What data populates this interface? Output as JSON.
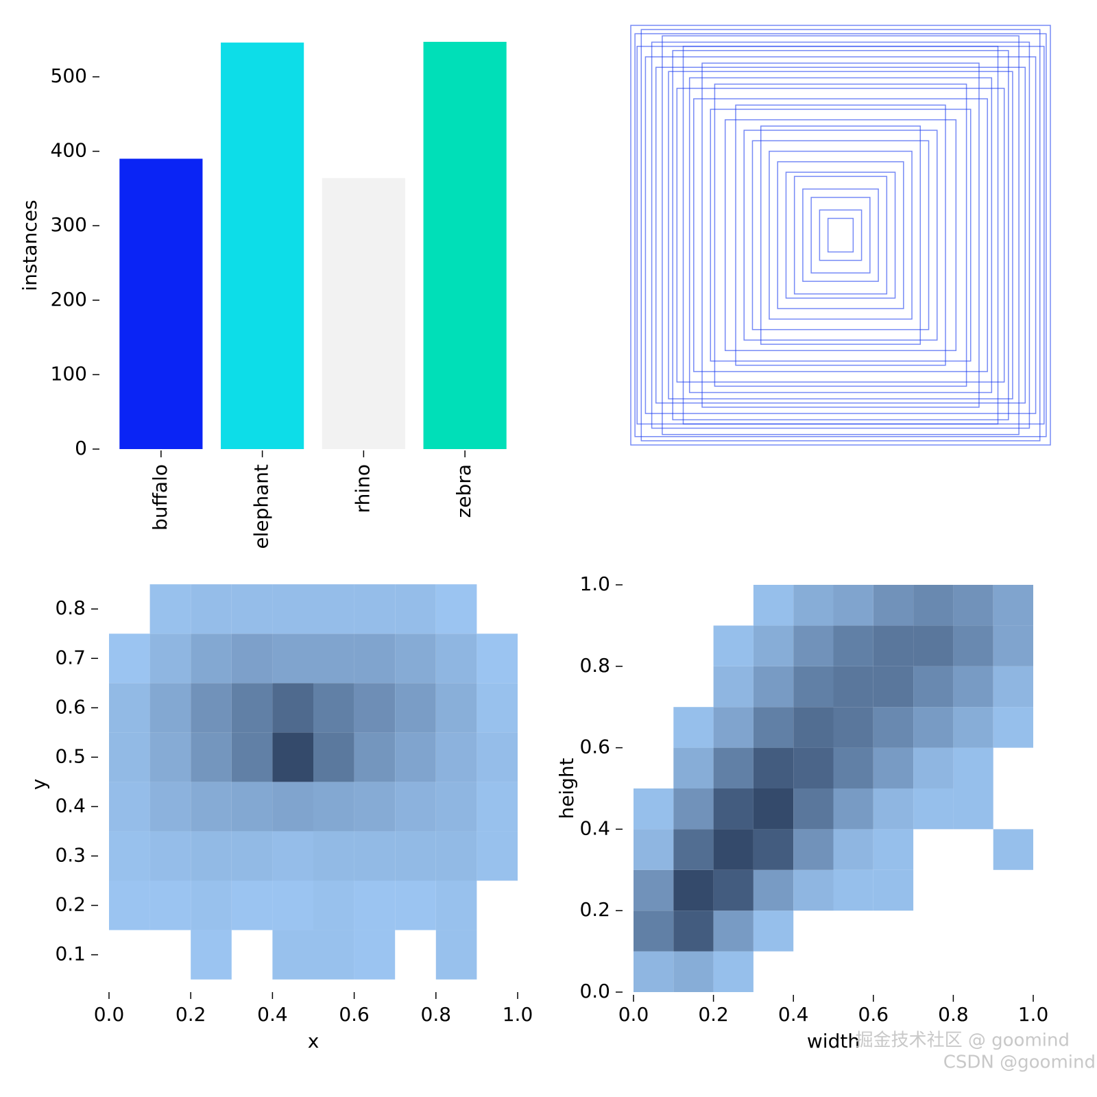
{
  "chart_data": [
    {
      "type": "bar",
      "ylabel": "instances",
      "categories": [
        "buffalo",
        "elephant",
        "rhino",
        "zebra"
      ],
      "values": [
        390,
        546,
        364,
        547
      ],
      "colors": [
        "#0a24f5",
        "#0ddde8",
        "#f2f2f2",
        "#00dfb8"
      ],
      "ylim": [
        0,
        547
      ],
      "yticks": [
        0,
        100,
        200,
        300,
        400,
        500
      ]
    },
    {
      "type": "boxes",
      "color": "#1a3cf0",
      "widths": [
        1.0,
        0.98,
        0.97,
        0.95,
        0.93,
        0.9,
        0.88,
        0.85,
        0.82,
        0.8,
        0.78,
        0.75,
        0.72,
        0.7,
        0.66,
        0.62,
        0.6,
        0.55,
        0.5,
        0.46,
        0.42,
        0.38,
        0.34,
        0.3,
        0.26,
        0.22,
        0.18,
        0.14,
        0.1,
        0.06
      ],
      "heights": [
        1.0,
        0.96,
        0.9,
        0.98,
        0.85,
        0.92,
        0.8,
        0.95,
        0.78,
        0.88,
        0.7,
        0.9,
        0.75,
        0.65,
        0.82,
        0.6,
        0.72,
        0.55,
        0.62,
        0.5,
        0.45,
        0.52,
        0.4,
        0.35,
        0.3,
        0.28,
        0.22,
        0.18,
        0.12,
        0.08
      ]
    },
    {
      "type": "hist2d",
      "xlabel": "x",
      "ylabel": "y",
      "color_range": [
        "#9ec8f5",
        "#344a6b"
      ],
      "xbins": [
        0,
        0.1,
        0.2,
        0.3,
        0.4,
        0.5,
        0.6,
        0.7,
        0.8,
        0.9,
        1.0
      ],
      "ybins": [
        0.05,
        0.15,
        0.25,
        0.35,
        0.45,
        0.55,
        0.65,
        0.75,
        0.85
      ],
      "counts": [
        [
          0,
          0,
          1,
          0,
          2,
          2,
          1,
          0,
          2,
          0
        ],
        [
          1,
          1,
          2,
          1,
          1,
          2,
          1,
          1,
          2,
          0
        ],
        [
          2,
          3,
          4,
          4,
          3,
          4,
          4,
          4,
          4,
          2
        ],
        [
          3,
          6,
          8,
          9,
          10,
          9,
          8,
          6,
          5,
          2
        ],
        [
          4,
          8,
          14,
          20,
          35,
          22,
          14,
          10,
          6,
          3
        ],
        [
          4,
          9,
          15,
          20,
          26,
          20,
          16,
          12,
          7,
          2
        ],
        [
          1,
          5,
          9,
          11,
          10,
          10,
          10,
          8,
          5,
          1
        ],
        [
          0,
          2,
          3,
          3,
          3,
          3,
          3,
          3,
          1,
          0
        ]
      ],
      "xlim": [
        0,
        1
      ],
      "ylim": [
        0.03,
        0.86
      ],
      "xticks": [
        {
          "value": 0,
          "label": "0.0"
        },
        0.2,
        0.4,
        0.6,
        0.8,
        {
          "value": 1,
          "label": "1.0"
        }
      ],
      "yticks": [
        0.1,
        0.2,
        0.3,
        0.4,
        0.5,
        0.6,
        0.7,
        0.8
      ]
    },
    {
      "type": "hist2d",
      "xlabel": "width",
      "ylabel": "height",
      "color_range": [
        "#9ec8f5",
        "#344a6b"
      ],
      "xbins": [
        0,
        0.1,
        0.2,
        0.3,
        0.4,
        0.5,
        0.6,
        0.7,
        0.8,
        0.9,
        1.0
      ],
      "ybins": [
        0,
        0.1,
        0.2,
        0.3,
        0.4,
        0.5,
        0.6,
        0.7,
        0.8,
        0.9,
        1.0
      ],
      "counts": [
        [
          2,
          3,
          1,
          0,
          0,
          0,
          0,
          0,
          0,
          0
        ],
        [
          8,
          12,
          5,
          1,
          0,
          0,
          0,
          0,
          0,
          0
        ],
        [
          6,
          14,
          12,
          5,
          2,
          1,
          1,
          0,
          0,
          0
        ],
        [
          2,
          10,
          14,
          12,
          6,
          2,
          1,
          0,
          0,
          1
        ],
        [
          1,
          6,
          12,
          14,
          9,
          5,
          2,
          1,
          1,
          0
        ],
        [
          0,
          3,
          8,
          12,
          11,
          8,
          5,
          2,
          1,
          0
        ],
        [
          0,
          1,
          4,
          8,
          10,
          9,
          7,
          5,
          3,
          1
        ],
        [
          0,
          0,
          2,
          5,
          8,
          9,
          9,
          7,
          5,
          2
        ],
        [
          0,
          0,
          1,
          3,
          6,
          8,
          9,
          9,
          7,
          4
        ],
        [
          0,
          0,
          0,
          1,
          3,
          4,
          6,
          7,
          6,
          4
        ]
      ],
      "xlim": [
        0,
        1
      ],
      "ylim": [
        0,
        1
      ],
      "xticks": [
        {
          "value": 0,
          "label": "0.0"
        },
        0.2,
        0.4,
        0.6,
        0.8,
        {
          "value": 1,
          "label": "1.0"
        }
      ],
      "yticks": [
        {
          "value": 0,
          "label": "0.0"
        },
        0.2,
        0.4,
        0.6,
        0.8,
        {
          "value": 1,
          "label": "1.0"
        }
      ]
    }
  ],
  "watermarks": [
    "掘金技术社区 @ goomind",
    "CSDN @goomind"
  ]
}
